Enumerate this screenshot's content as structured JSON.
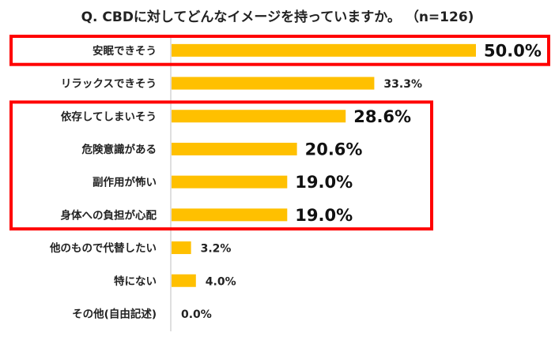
{
  "chart_data": {
    "type": "bar",
    "orientation": "horizontal",
    "title": "Q. CBDに対してどんなイメージを持っていますか。 （n=126)",
    "categories": [
      "安眠できそう",
      "リラックスできそう",
      "依存してしまいそう",
      "危険意識がある",
      "副作用が怖い",
      "身体への負担が心配",
      "他のもので代替したい",
      "特にない",
      "その他(自由記述)"
    ],
    "values": [
      50.0,
      33.3,
      28.6,
      20.6,
      19.0,
      19.0,
      3.2,
      4.0,
      0.0
    ],
    "value_labels": [
      "50.0%",
      "33.3%",
      "28.6%",
      "20.6%",
      "19.0%",
      "19.0%",
      "3.2%",
      "4.0%",
      "0.0%"
    ],
    "emphasized_labels": [
      true,
      false,
      true,
      true,
      true,
      true,
      false,
      false,
      false
    ],
    "highlight_groups": [
      {
        "from_category": 0,
        "to_category": 0
      },
      {
        "from_category": 2,
        "to_category": 5
      }
    ],
    "xlim": [
      0,
      50
    ],
    "grid": false,
    "legend": "none",
    "bar_color": "#FFC000",
    "highlight_color": "#FF0000"
  }
}
